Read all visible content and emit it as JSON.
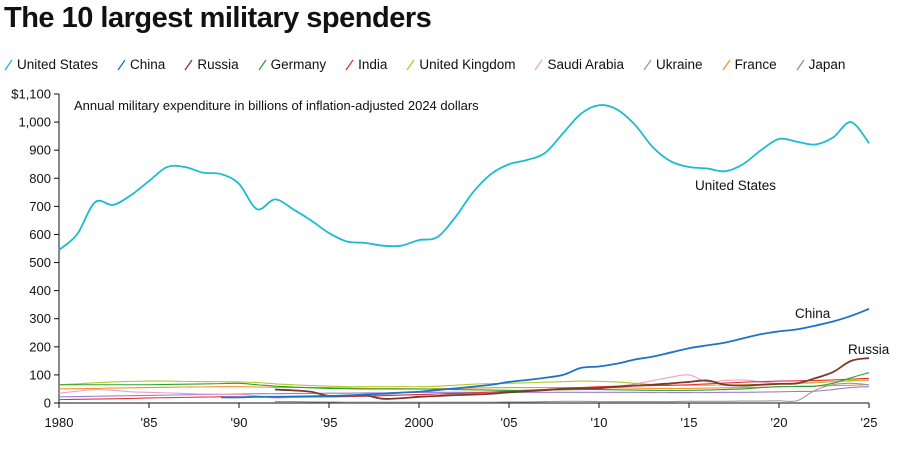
{
  "chart_data": {
    "type": "line",
    "title": "The 10 largest military spenders",
    "annotation": "Annual military expenditure in billions of inflation-adjusted 2024 dollars",
    "xlim": [
      1980,
      2025
    ],
    "ylim": [
      0,
      1100
    ],
    "grid": false,
    "legend": "top",
    "x_ticks": [
      1980,
      1985,
      1990,
      1995,
      2000,
      2005,
      2010,
      2015,
      2020,
      2025
    ],
    "x_tick_labels": [
      "1980",
      "'85",
      "'90",
      "'95",
      "2000",
      "'05",
      "'10",
      "'15",
      "'20",
      "'25"
    ],
    "y_ticks": [
      0,
      100,
      200,
      300,
      400,
      500,
      600,
      700,
      800,
      900,
      1000,
      1100
    ],
    "y_tick_labels": [
      "0",
      "100",
      "200",
      "300",
      "400",
      "500",
      "600",
      "700",
      "800",
      "900",
      "1,000",
      "$1,100"
    ],
    "line_labels": [
      {
        "series": "United States",
        "text": "United States"
      },
      {
        "series": "China",
        "text": "China"
      },
      {
        "series": "Russia",
        "text": "Russia"
      }
    ],
    "series": [
      {
        "name": "United States",
        "color": "#1bbcd0",
        "start": 1980,
        "values": [
          545,
          600,
          715,
          705,
          740,
          790,
          840,
          840,
          820,
          815,
          780,
          690,
          725,
          690,
          650,
          605,
          575,
          570,
          560,
          560,
          580,
          590,
          660,
          750,
          815,
          850,
          865,
          890,
          960,
          1030,
          1060,
          1045,
          990,
          910,
          860,
          840,
          835,
          825,
          850,
          900,
          940,
          930,
          920,
          945,
          1000,
          925
        ]
      },
      {
        "name": "China",
        "color": "#1a75c4",
        "start": 1989,
        "values": [
          20,
          20,
          22,
          22,
          23,
          24,
          25,
          27,
          30,
          33,
          37,
          40,
          46,
          52,
          58,
          65,
          75,
          82,
          90,
          100,
          125,
          130,
          140,
          155,
          165,
          180,
          195,
          205,
          215,
          230,
          245,
          255,
          262,
          275,
          290,
          310,
          335
        ]
      },
      {
        "name": "Russia",
        "color": "#7a3a2a",
        "start": 1992,
        "values": [
          48,
          45,
          40,
          25,
          26,
          27,
          15,
          17,
          22,
          25,
          28,
          30,
          33,
          38,
          42,
          46,
          50,
          52,
          53,
          58,
          62,
          65,
          70,
          75,
          80,
          65,
          62,
          65,
          68,
          70,
          88,
          110,
          150,
          160
        ]
      },
      {
        "name": "Germany",
        "color": "#2ca02c",
        "start": 1980,
        "values": [
          65,
          65,
          65,
          65,
          65,
          65,
          66,
          67,
          68,
          69,
          70,
          65,
          60,
          57,
          54,
          52,
          51,
          50,
          50,
          50,
          50,
          49,
          48,
          47,
          46,
          45,
          45,
          46,
          47,
          48,
          48,
          47,
          46,
          45,
          45,
          45,
          46,
          48,
          50,
          55,
          58,
          59,
          60,
          70,
          90,
          108
        ]
      },
      {
        "name": "India",
        "color": "#e8303a",
        "start": 1980,
        "values": [
          12,
          13,
          14,
          15,
          16,
          18,
          19,
          20,
          21,
          22,
          22,
          22,
          21,
          21,
          22,
          22,
          23,
          24,
          26,
          28,
          30,
          32,
          34,
          36,
          39,
          42,
          45,
          48,
          52,
          55,
          58,
          60,
          61,
          62,
          63,
          65,
          68,
          71,
          74,
          76,
          78,
          79,
          80,
          82,
          85,
          88
        ]
      },
      {
        "name": "United Kingdom",
        "color": "#b7c726",
        "start": 1980,
        "values": [
          65,
          68,
          72,
          75,
          77,
          78,
          78,
          77,
          76,
          76,
          75,
          73,
          68,
          65,
          62,
          60,
          58,
          58,
          58,
          58,
          58,
          60,
          63,
          67,
          69,
          70,
          72,
          74,
          76,
          78,
          77,
          75,
          70,
          66,
          64,
          63,
          63,
          64,
          65,
          66,
          68,
          70,
          72,
          76,
          80,
          82
        ]
      },
      {
        "name": "Saudi Arabia",
        "color": "#f0a0c8",
        "start": 1980,
        "values": [
          35,
          42,
          48,
          45,
          40,
          38,
          36,
          34,
          32,
          31,
          30,
          25,
          18,
          20,
          21,
          22,
          23,
          25,
          28,
          29,
          30,
          32,
          33,
          35,
          38,
          40,
          45,
          48,
          50,
          53,
          55,
          60,
          68,
          80,
          92,
          100,
          75,
          80,
          82,
          75,
          70,
          72,
          74,
          76,
          78,
          80
        ]
      },
      {
        "name": "Ukraine",
        "color": "#9a9a9a",
        "start": 1992,
        "values": [
          5,
          5,
          4,
          4,
          3,
          3,
          3,
          3,
          3,
          3,
          3,
          3,
          3,
          4,
          4,
          5,
          6,
          6,
          5,
          5,
          5,
          5,
          5,
          6,
          6,
          6,
          7,
          7,
          8,
          8,
          45,
          65,
          70,
          65
        ]
      },
      {
        "name": "France",
        "color": "#f5922a",
        "start": 1980,
        "values": [
          50,
          51,
          52,
          53,
          54,
          55,
          56,
          57,
          57,
          58,
          58,
          57,
          56,
          55,
          55,
          55,
          53,
          52,
          51,
          51,
          50,
          51,
          52,
          53,
          54,
          55,
          55,
          55,
          55,
          55,
          55,
          54,
          53,
          52,
          52,
          52,
          53,
          54,
          55,
          56,
          58,
          59,
          60,
          62,
          63,
          65
        ]
      },
      {
        "name": "Japan",
        "color": "#9a7fd0",
        "start": 1980,
        "values": [
          22,
          23,
          24,
          25,
          26,
          27,
          28,
          29,
          30,
          31,
          32,
          33,
          33,
          34,
          34,
          35,
          35,
          36,
          36,
          37,
          38,
          38,
          38,
          38,
          38,
          38,
          38,
          38,
          38,
          38,
          38,
          38,
          38,
          37,
          37,
          37,
          37,
          38,
          38,
          39,
          40,
          41,
          42,
          48,
          55,
          58
        ]
      }
    ]
  }
}
